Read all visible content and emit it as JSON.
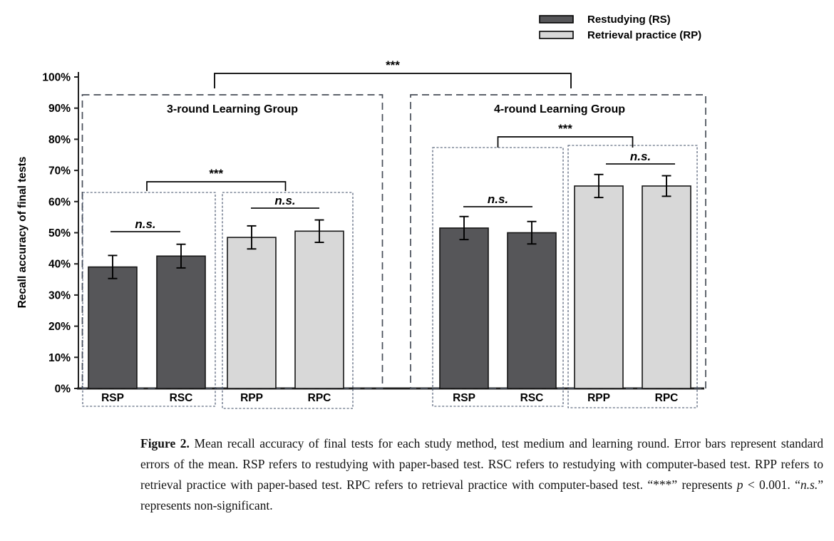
{
  "figure": {
    "caption_segments": [
      {
        "style": "bold",
        "text": "Figure 2."
      },
      {
        "style": "normal",
        "text": " Mean recall accuracy of final tests for each study method, test medium and learning round. Error bars represent standard errors of the mean. RSP refers to restudying with paper-based test. RSC refers to restudying with computer-based test. RPP refers to retrieval practice with paper-based test. RPC refers to retrieval practice with computer-based test. “***” represents "
      },
      {
        "style": "italic",
        "text": "p"
      },
      {
        "style": "normal",
        "text": " < 0.001. “"
      },
      {
        "style": "italic",
        "text": "n.s."
      },
      {
        "style": "normal",
        "text": "” represents non-significant."
      }
    ]
  },
  "chart_data": {
    "type": "bar",
    "title": "",
    "ylabel": "Recall accuracy of final tests",
    "xlabel": "",
    "ylim": [
      0,
      100
    ],
    "yticks": [
      0,
      10,
      20,
      30,
      40,
      50,
      60,
      70,
      80,
      90,
      100
    ],
    "ytick_suffix": "%",
    "grid": false,
    "legend": {
      "position": "top-right",
      "items": [
        {
          "name": "Restudying (RS)",
          "color": "#565659"
        },
        {
          "name": "Retrieval practice (RP)",
          "color": "#d8d8d8"
        }
      ]
    },
    "groups": [
      {
        "title": "3-round Learning Group",
        "bars": [
          {
            "label": "RSP",
            "series": "Restudying (RS)",
            "value": 39.0,
            "se": 3.7
          },
          {
            "label": "RSC",
            "series": "Restudying (RS)",
            "value": 42.5,
            "se": 3.8
          },
          {
            "label": "RPP",
            "series": "Retrieval practice (RP)",
            "value": 48.5,
            "se": 3.7
          },
          {
            "label": "RPC",
            "series": "Retrieval practice (RP)",
            "value": 50.5,
            "se": 3.6
          }
        ],
        "pair_annotations": [
          {
            "pair": [
              "RSP",
              "RSC"
            ],
            "label": "n.s."
          },
          {
            "pair": [
              "RPP",
              "RPC"
            ],
            "label": "n.s."
          }
        ],
        "rs_vs_rp_annotation": "***"
      },
      {
        "title": "4-round Learning Group",
        "bars": [
          {
            "label": "RSP",
            "series": "Restudying (RS)",
            "value": 51.5,
            "se": 3.7
          },
          {
            "label": "RSC",
            "series": "Restudying (RS)",
            "value": 50.0,
            "se": 3.6
          },
          {
            "label": "RPP",
            "series": "Retrieval practice (RP)",
            "value": 65.0,
            "se": 3.7
          },
          {
            "label": "RPC",
            "series": "Retrieval practice (RP)",
            "value": 65.0,
            "se": 3.3
          }
        ],
        "pair_annotations": [
          {
            "pair": [
              "RSP",
              "RSC"
            ],
            "label": "n.s."
          },
          {
            "pair": [
              "RPP",
              "RPC"
            ],
            "label": "n.s."
          }
        ],
        "rs_vs_rp_annotation": "***"
      }
    ],
    "between_group_annotation": "***"
  },
  "colors": {
    "bar_dark": "#565659",
    "bar_light": "#d8d8d8",
    "bar_stroke": "#161616",
    "axis": "#1f1f1f",
    "outer_box": "#474d57",
    "inner_box": "#3e4c66",
    "annotation": "#111111"
  }
}
